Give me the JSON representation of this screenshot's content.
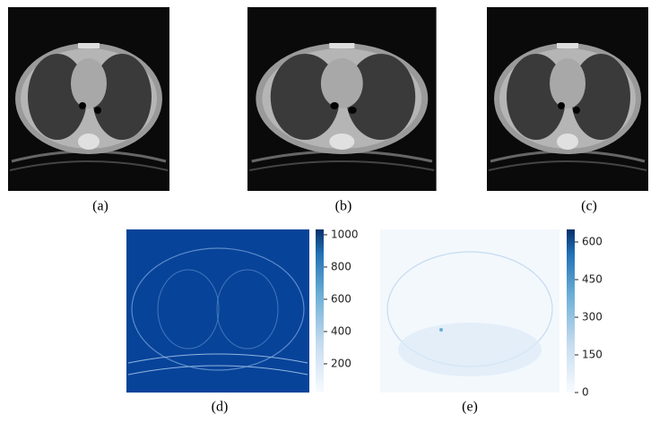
{
  "panels": [
    {
      "label": "(a)"
    },
    {
      "label": "(b)"
    },
    {
      "label": "(c)"
    },
    {
      "label": "(d)"
    },
    {
      "label": "(e)"
    }
  ],
  "colorbars": [
    {
      "panel": "(d)",
      "lim": [
        22,
        1033
      ],
      "ticks": [
        1000,
        800,
        600,
        400,
        200
      ]
    },
    {
      "panel": "(e)",
      "lim": [
        0,
        650
      ],
      "ticks": [
        600,
        450,
        300,
        150,
        0
      ]
    }
  ]
}
